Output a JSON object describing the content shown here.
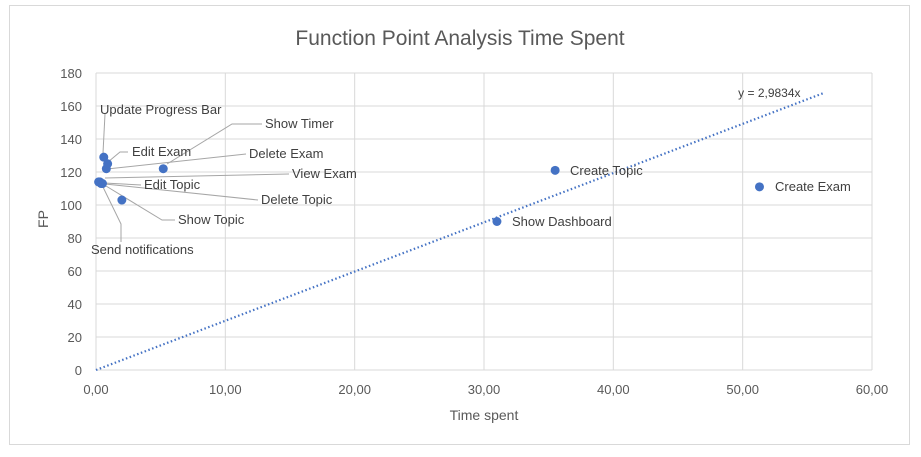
{
  "chart_data": {
    "type": "scatter",
    "title": "Function Point Analysis Time Spent",
    "xlabel": "Time spent",
    "ylabel": "FP",
    "xlim": [
      0,
      60
    ],
    "ylim": [
      0,
      180
    ],
    "x_ticks": [
      "0,00",
      "10,00",
      "20,00",
      "30,00",
      "40,00",
      "50,00",
      "60,00"
    ],
    "y_ticks": [
      "0",
      "20",
      "40",
      "60",
      "80",
      "100",
      "120",
      "140",
      "160",
      "180"
    ],
    "grid": "vertical and horizontal",
    "trendline": {
      "type": "linear through origin",
      "slope": 2.9834,
      "x_end": 56.3,
      "label": "y = 2,9834x"
    },
    "colors": {
      "point": "#4472c4",
      "trendline": "#4472c4",
      "grid": "#d9d9d9",
      "leader": "#a6a6a6"
    },
    "points": [
      {
        "label": "Update Progress Bar",
        "x": 0.6,
        "y": 129
      },
      {
        "label": "Show Timer",
        "x": 5.2,
        "y": 122
      },
      {
        "label": "Edit Exam",
        "x": 0.9,
        "y": 125
      },
      {
        "label": "Delete Exam",
        "x": 0.8,
        "y": 122
      },
      {
        "label": "View Exam",
        "x": 0.4,
        "y": 113
      },
      {
        "label": "Edit Topic",
        "x": 0.3,
        "y": 114
      },
      {
        "label": "Delete Topic",
        "x": 0.5,
        "y": 113
      },
      {
        "label": "Show Topic",
        "x": 2.0,
        "y": 103
      },
      {
        "label": "Send notifications",
        "x": 0.2,
        "y": 114
      },
      {
        "label": "Create Topic",
        "x": 35.5,
        "y": 121
      },
      {
        "label": "Create Exam",
        "x": 51.3,
        "y": 111
      },
      {
        "label": "Show Dashboard",
        "x": 31.0,
        "y": 90
      }
    ]
  }
}
